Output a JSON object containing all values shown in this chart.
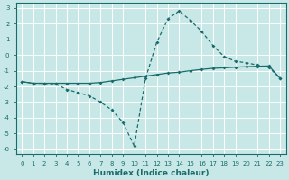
{
  "line1_x": [
    0,
    1,
    2,
    3,
    4,
    5,
    6,
    7,
    8,
    9,
    10,
    11,
    12,
    13,
    14,
    15,
    16,
    17,
    18,
    19,
    20,
    21,
    22,
    23
  ],
  "line1_y": [
    -1.7,
    -1.8,
    -1.8,
    -1.8,
    -1.8,
    -1.8,
    -1.8,
    -1.75,
    -1.65,
    -1.55,
    -1.45,
    -1.35,
    -1.25,
    -1.15,
    -1.1,
    -1.0,
    -0.92,
    -0.85,
    -0.82,
    -0.78,
    -0.75,
    -0.72,
    -0.7,
    -1.5
  ],
  "line2_x": [
    0,
    1,
    2,
    3,
    4,
    5,
    6,
    7,
    8,
    9,
    10,
    11,
    12,
    13,
    14,
    15,
    16,
    17,
    18,
    19,
    20,
    21,
    22,
    23
  ],
  "line2_y": [
    -1.7,
    -1.8,
    -1.8,
    -1.85,
    -2.2,
    -2.4,
    -2.6,
    -3.0,
    -3.5,
    -4.3,
    -5.8,
    -1.5,
    0.8,
    2.3,
    2.8,
    2.2,
    1.5,
    0.6,
    -0.1,
    -0.4,
    -0.5,
    -0.65,
    -0.8,
    -1.5
  ],
  "line_color": "#1a6b6b",
  "bg_color": "#c8e8e8",
  "grid_color": "#ffffff",
  "xlim": [
    -0.5,
    23.5
  ],
  "ylim": [
    -6.3,
    3.3
  ],
  "yticks": [
    -6,
    -5,
    -4,
    -3,
    -2,
    -1,
    0,
    1,
    2,
    3
  ],
  "xticks": [
    0,
    1,
    2,
    3,
    4,
    5,
    6,
    7,
    8,
    9,
    10,
    11,
    12,
    13,
    14,
    15,
    16,
    17,
    18,
    19,
    20,
    21,
    22,
    23
  ],
  "xlabel": "Humidex (Indice chaleur)"
}
